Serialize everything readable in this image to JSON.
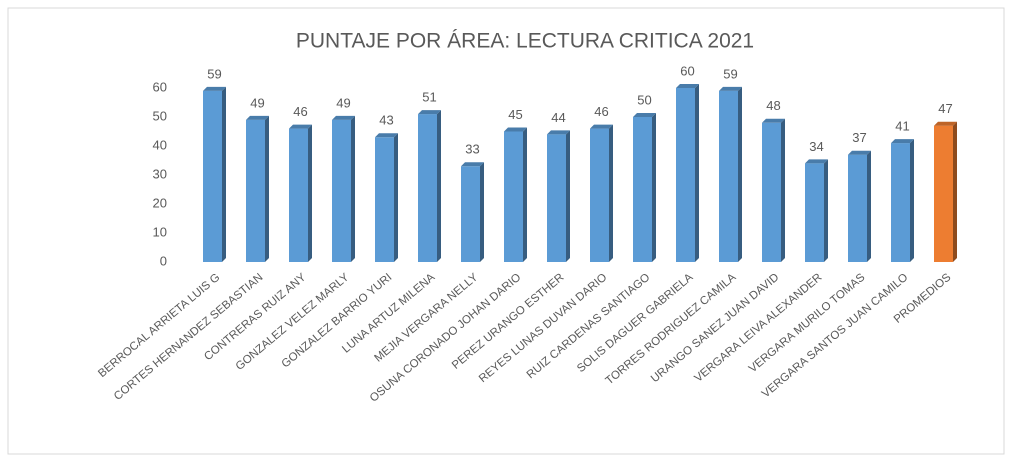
{
  "chart_data": {
    "type": "bar",
    "title": "PUNTAJE POR ÁREA: LECTURA CRITICA 2021",
    "categories": [
      "BERROCAL ARRIETA LUIS G",
      "CORTES HERNANDEZ SEBASTIAN",
      "CONTRERAS RUIZ ANY",
      "GONZALEZ VELEZ MARLY",
      "GONZALEZ BARRIO YURI",
      "LUNA ARTUZ MILENA",
      "MEJIA VERGARA NELLY",
      "OSUNA CORONADO JOHAN DARIO",
      "PEREZ URANGO ESTHER",
      "REYES LUNAS DUVAN DARIO",
      "RUIZ CARDENAS SANTIAGO",
      "SOLIS DAGUER GABRIELA",
      "TORRES RODRIGUEZ CAMILA",
      "URANGO SANEZ JUAN DAVID",
      "VERGARA LEIVA ALEXANDER",
      "VERGARA MURILO TOMAS",
      "VERGARA SANTOS JUAN CAMILO",
      "PROMEDIOS"
    ],
    "values": [
      59,
      49,
      46,
      49,
      43,
      51,
      33,
      45,
      44,
      46,
      50,
      60,
      59,
      48,
      34,
      37,
      41,
      47
    ],
    "colors": [
      "#5b9bd5",
      "#5b9bd5",
      "#5b9bd5",
      "#5b9bd5",
      "#5b9bd5",
      "#5b9bd5",
      "#5b9bd5",
      "#5b9bd5",
      "#5b9bd5",
      "#5b9bd5",
      "#5b9bd5",
      "#5b9bd5",
      "#5b9bd5",
      "#5b9bd5",
      "#5b9bd5",
      "#5b9bd5",
      "#5b9bd5",
      "#ed7d31"
    ],
    "ylim": [
      0,
      60
    ],
    "yticks": [
      0,
      10,
      20,
      30,
      40,
      50,
      60
    ],
    "grid": false
  }
}
